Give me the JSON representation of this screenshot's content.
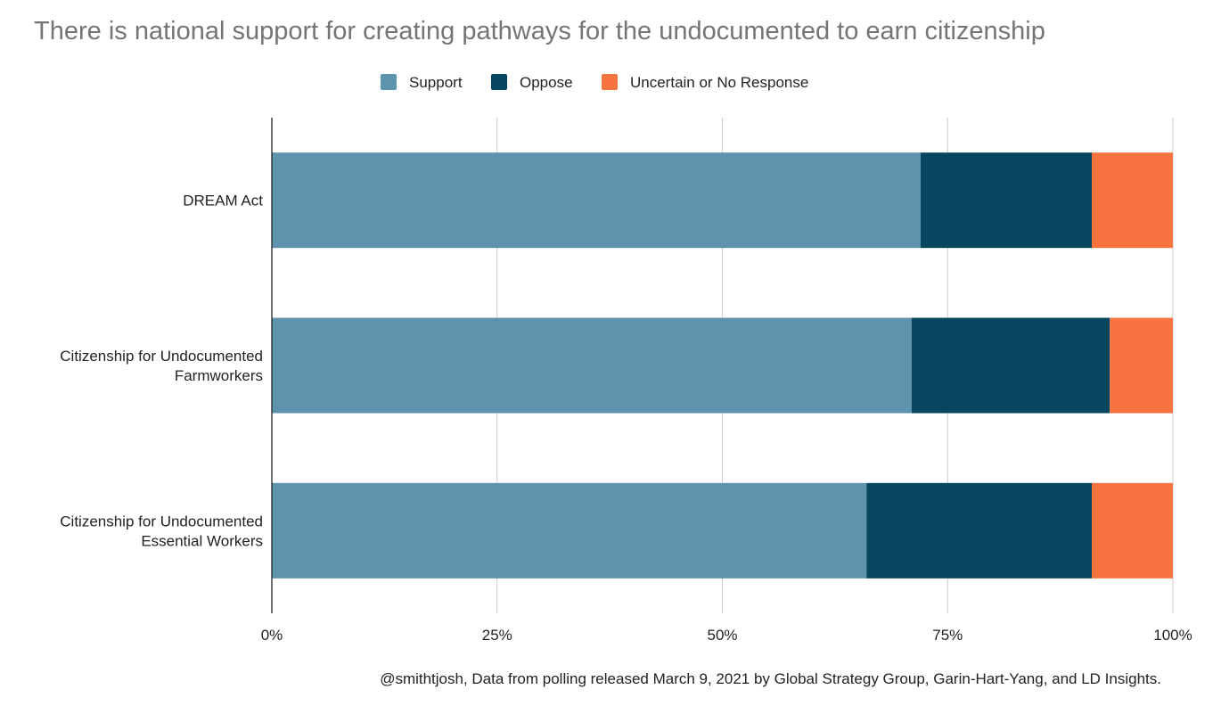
{
  "chart_data": {
    "type": "bar",
    "orientation": "horizontal",
    "stacked": "percent",
    "title": "There is national support for creating pathways for the undocumented to earn citizenship",
    "categories": [
      [
        "DREAM Act"
      ],
      [
        "Citizenship for Undocumented",
        "Farmworkers"
      ],
      [
        "Citizenship for Undocumented",
        "Essential Workers"
      ]
    ],
    "series": [
      {
        "name": "Support",
        "color": "#5e93ad",
        "values": [
          72,
          71,
          66
        ]
      },
      {
        "name": "Oppose",
        "color": "#06465e",
        "values": [
          19,
          22,
          25
        ]
      },
      {
        "name": "Uncertain or No Response",
        "color": "#f7733f",
        "values": [
          9,
          7,
          9
        ]
      }
    ],
    "xlim": [
      0,
      100
    ],
    "x_ticks": [
      "0%",
      "25%",
      "50%",
      "75%",
      "100%"
    ],
    "grid": true,
    "legend_position": "top",
    "caption": "@smithtjosh, Data from polling released March 9, 2021 by Global Strategy Group, Garin-Hart-Yang, and LD Insights."
  }
}
